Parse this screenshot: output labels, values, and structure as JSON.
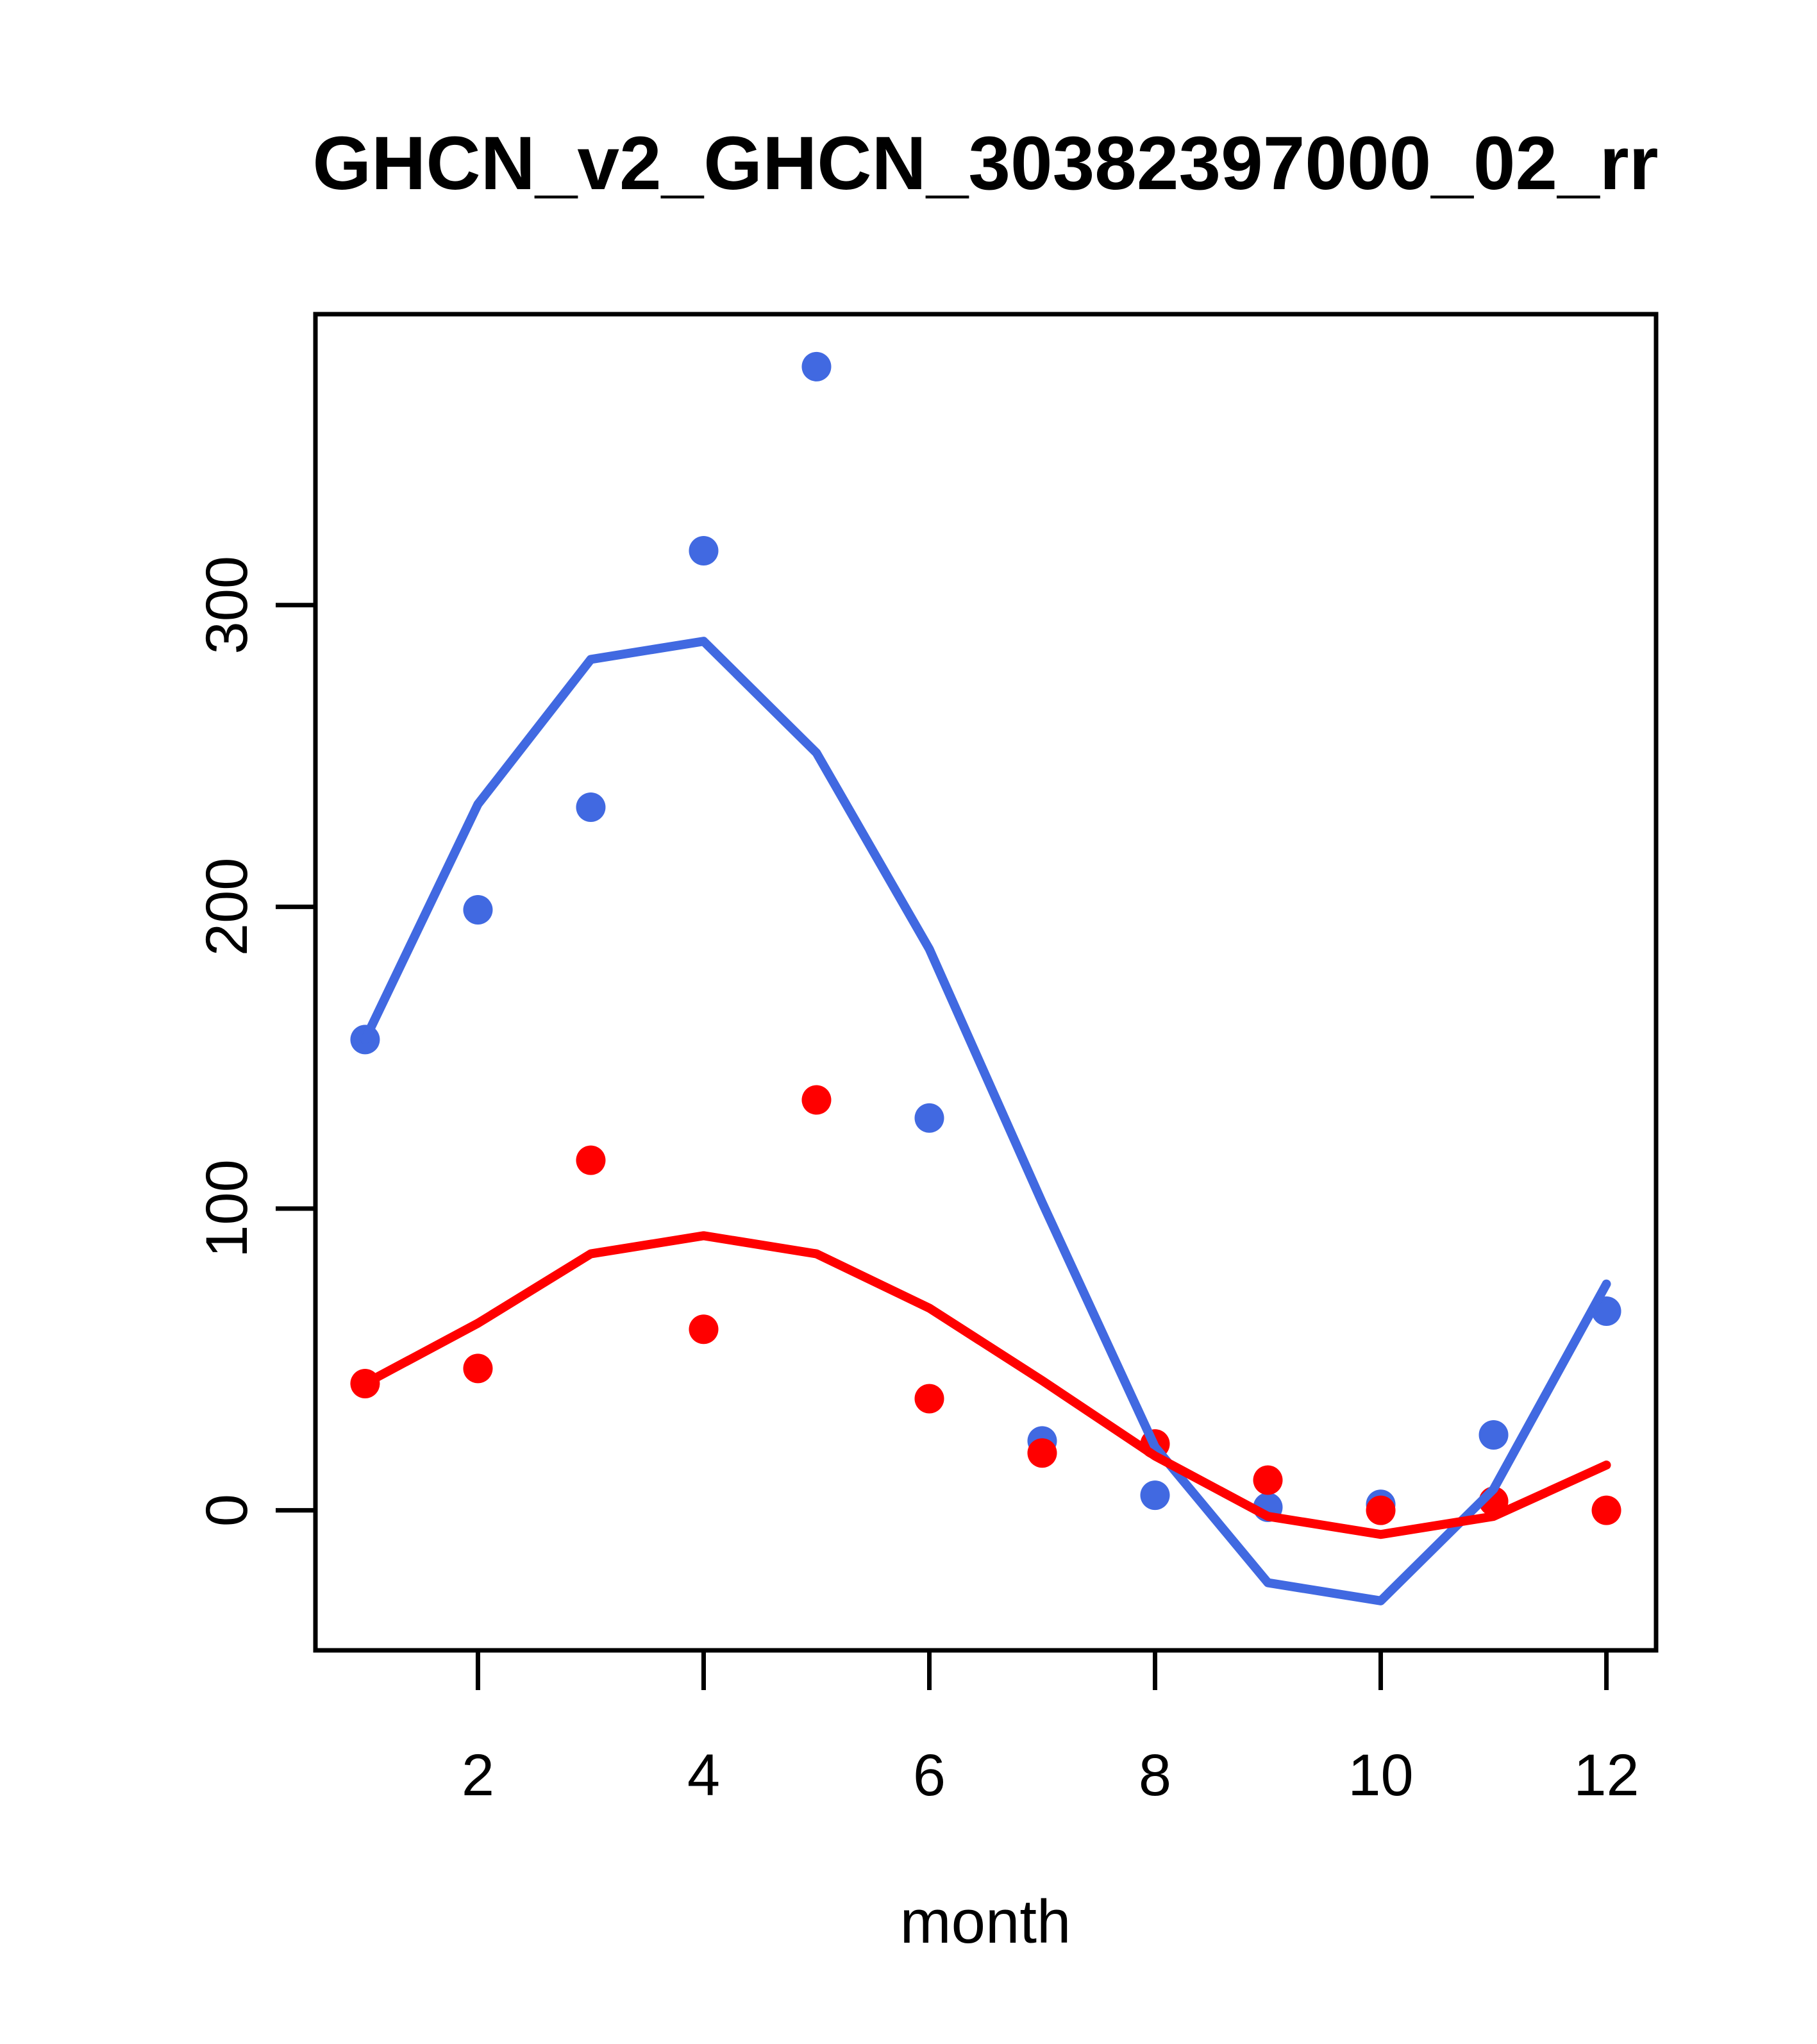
{
  "chart_data": {
    "type": "line",
    "title": "GHCN_v2_GHCN_30382397000_02_rr",
    "xlabel": "month",
    "ylabel": "",
    "x": [
      1,
      2,
      3,
      4,
      5,
      6,
      7,
      8,
      9,
      10,
      11,
      12
    ],
    "x_ticks": [
      2,
      4,
      6,
      8,
      10,
      12
    ],
    "y_ticks": [
      0,
      100,
      200,
      300
    ],
    "xlim": [
      0.56,
      12.44
    ],
    "ylim": [
      -46.4,
      396.4
    ],
    "grid": false,
    "legend": "none",
    "colors": {
      "series1": "#4169E1",
      "series2": "#FF0000",
      "axis": "#000000"
    },
    "series": [
      {
        "name": "blue-points",
        "type": "scatter",
        "color_key": "series1",
        "values": [
          156,
          199,
          233,
          318,
          379,
          130,
          23,
          5,
          1,
          2,
          25,
          66
        ]
      },
      {
        "name": "red-points",
        "type": "scatter",
        "color_key": "series2",
        "values": [
          42,
          47,
          116,
          60,
          136,
          37,
          19,
          22,
          10,
          0,
          3,
          0
        ]
      },
      {
        "name": "blue-line",
        "type": "line",
        "color_key": "series1",
        "values": [
          156,
          234,
          282,
          288,
          251,
          186,
          102,
          21,
          -24,
          -30,
          7,
          75
        ]
      },
      {
        "name": "red-line",
        "type": "line",
        "color_key": "series2",
        "values": [
          42,
          62,
          85,
          91,
          85,
          67,
          43,
          18,
          -2,
          -8,
          -2,
          15
        ]
      }
    ]
  }
}
